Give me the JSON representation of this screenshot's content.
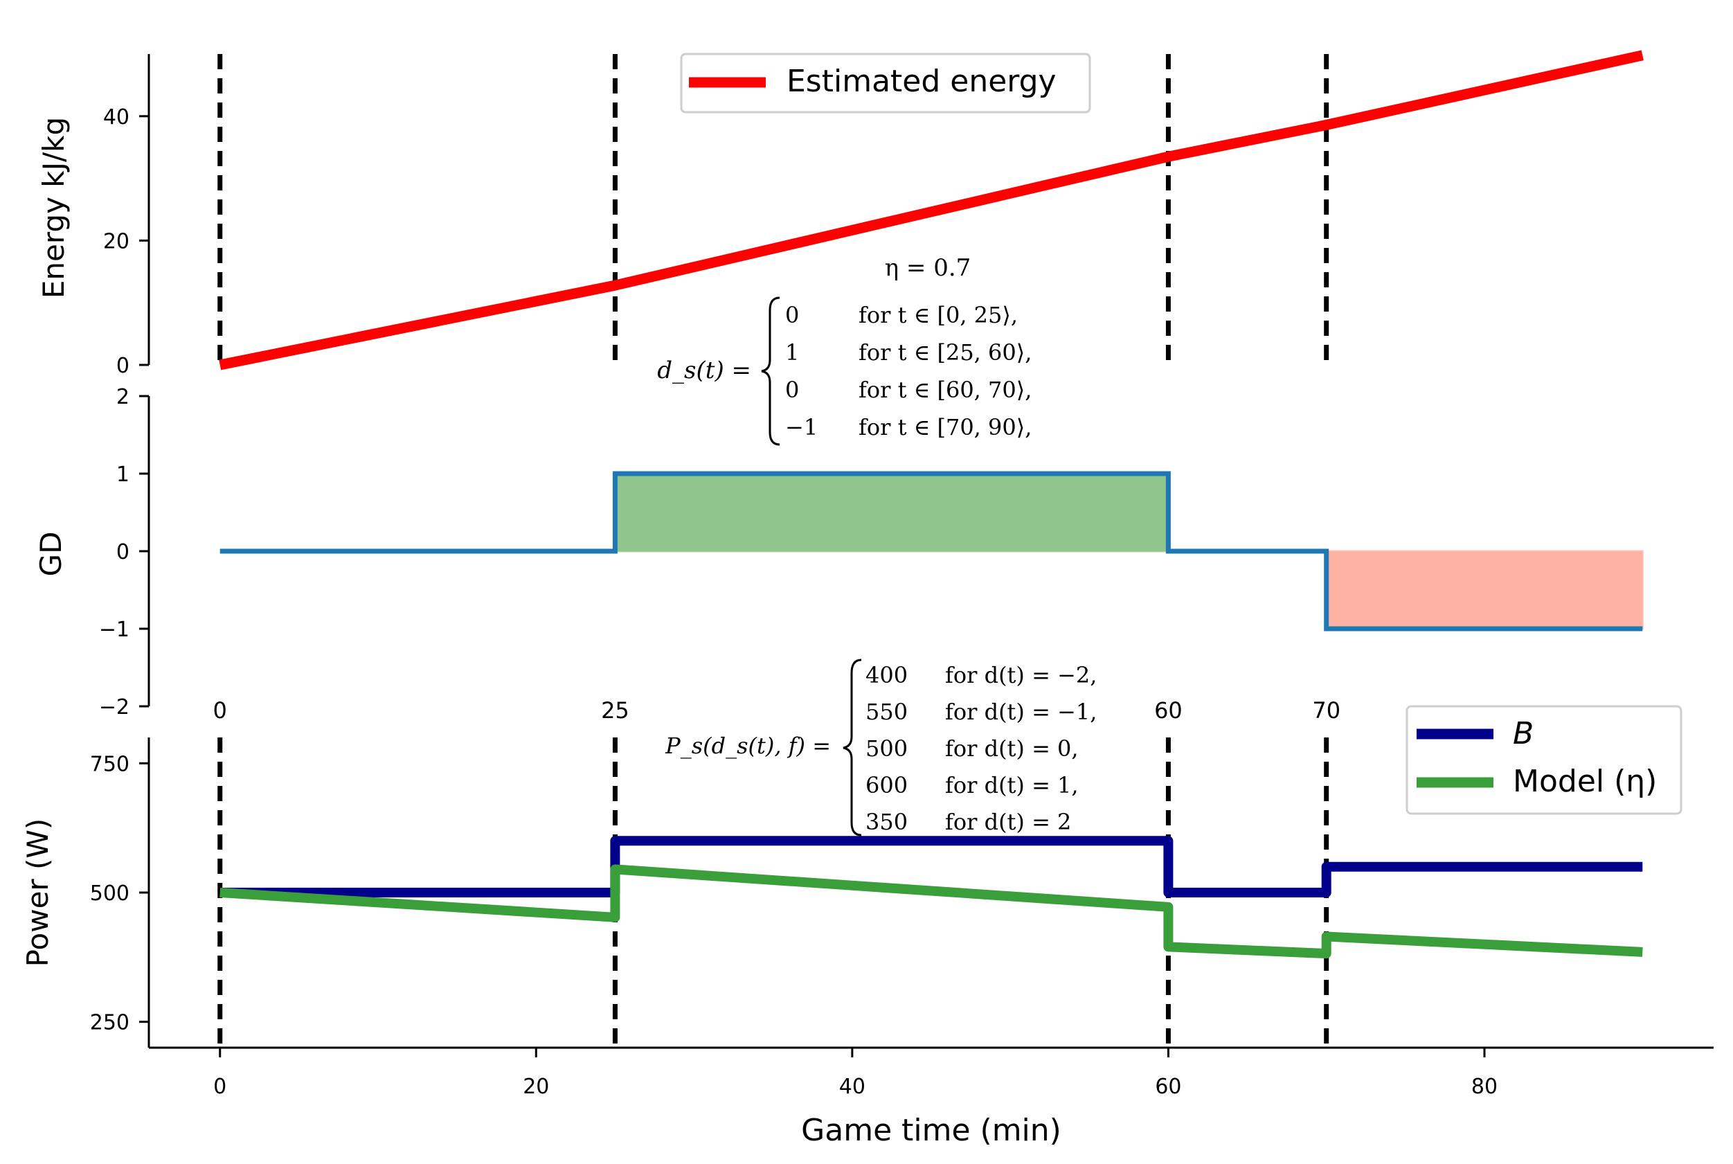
{
  "chart_data": [
    {
      "id": "energy",
      "type": "line",
      "ylabel": "Energy kJ/kg",
      "ylim": [
        0,
        50
      ],
      "yticks": [
        0,
        20,
        40
      ],
      "xlim": [
        -4.5,
        94.5
      ],
      "series": [
        {
          "name": "Estimated energy",
          "color": "#ff0000",
          "x": [
            0,
            25,
            60,
            70,
            90
          ],
          "y": [
            0,
            12.8,
            33.5,
            38.6,
            49.8
          ]
        }
      ],
      "legend": {
        "position": "top-center",
        "entries": [
          "Estimated energy"
        ]
      },
      "annotations": {
        "eta": "η = 0.7",
        "ds_lhs": "d_s(t) =",
        "ds_cases": [
          {
            "value": "0",
            "cond": "for t ∈ [0, 25⟩,"
          },
          {
            "value": "1",
            "cond": "for t ∈ [25, 60⟩,"
          },
          {
            "value": "0",
            "cond": "for t ∈ [60, 70⟩,"
          },
          {
            "value": "−1",
            "cond": "for t ∈ [70, 90⟩,"
          }
        ]
      }
    },
    {
      "id": "gd",
      "type": "step",
      "ylabel": "GD",
      "ylim": [
        -2,
        2
      ],
      "yticks": [
        2,
        1,
        0,
        -1,
        -2
      ],
      "ytick_labels": [
        "2",
        "1",
        "0",
        "−1",
        "−2"
      ],
      "xlim": [
        -4.5,
        94.5
      ],
      "series": [
        {
          "name": "GD",
          "color": "#1f77b4",
          "x": [
            0,
            25,
            25,
            60,
            60,
            70,
            70,
            90
          ],
          "y": [
            0,
            0,
            1,
            1,
            0,
            0,
            -1,
            -1
          ]
        }
      ],
      "fills": [
        {
          "x0": 25,
          "x1": 60,
          "y0": 0,
          "y1": 1,
          "color": "#90c58e"
        },
        {
          "x0": 70,
          "x1": 90,
          "y0": -1,
          "y1": 0,
          "color": "#fdb2a4"
        }
      ],
      "vline_labels": [
        "0",
        "25",
        "60",
        "70"
      ]
    },
    {
      "id": "power",
      "type": "line",
      "ylabel": "Power (W)",
      "xlabel": "Game time (min)",
      "ylim": [
        200,
        800
      ],
      "yticks": [
        250,
        500,
        750
      ],
      "xlim": [
        -4.5,
        94.5
      ],
      "xticks": [
        0,
        20,
        40,
        60,
        80
      ],
      "series": [
        {
          "name": "B",
          "color": "#00008b",
          "x": [
            0,
            25,
            25,
            60,
            60,
            70,
            70,
            90
          ],
          "y": [
            500,
            500,
            600,
            600,
            500,
            500,
            550,
            550
          ]
        },
        {
          "name": "Model (η)",
          "color": "#3a9e3a",
          "x": [
            0,
            25,
            25,
            60,
            60,
            70,
            70,
            90
          ],
          "y": [
            500,
            452,
            545,
            472,
            395,
            382,
            415,
            385
          ]
        }
      ],
      "legend": {
        "position": "top-right",
        "entries": [
          "B",
          "Model (η)"
        ]
      },
      "annotations": {
        "ps_lhs": "P_s(d_s(t), f) =",
        "ps_cases": [
          {
            "value": "400",
            "cond": "for d(t) = −2,"
          },
          {
            "value": "550",
            "cond": "for d(t) = −1,"
          },
          {
            "value": "500",
            "cond": "for d(t) = 0,"
          },
          {
            "value": "600",
            "cond": "for d(t) = 1,"
          },
          {
            "value": "350",
            "cond": "for d(t) = 2"
          }
        ]
      }
    }
  ],
  "vlines": [
    0,
    25,
    60,
    70
  ]
}
